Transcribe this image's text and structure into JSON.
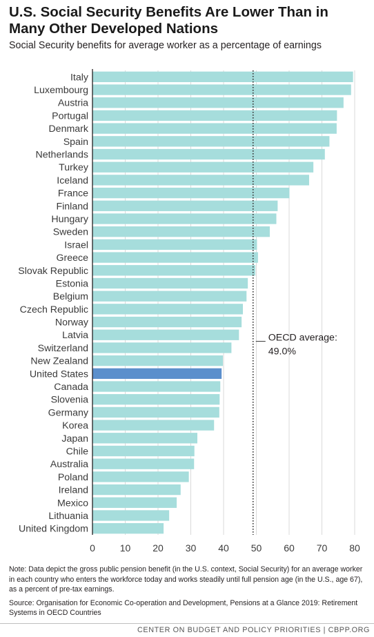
{
  "header": {
    "title": "U.S. Social Security Benefits Are Lower Than in Many Other Developed Nations",
    "subtitle": "Social Security benefits for average worker as a percentage of earnings"
  },
  "chart_data": {
    "type": "bar",
    "orientation": "horizontal",
    "categories": [
      "Italy",
      "Luxembourg",
      "Austria",
      "Portugal",
      "Denmark",
      "Spain",
      "Netherlands",
      "Turkey",
      "Iceland",
      "France",
      "Finland",
      "Hungary",
      "Sweden",
      "Israel",
      "Greece",
      "Slovak Republic",
      "Estonia",
      "Belgium",
      "Czech Republic",
      "Norway",
      "Latvia",
      "Switzerland",
      "New Zealand",
      "United States",
      "Canada",
      "Slovenia",
      "Germany",
      "Korea",
      "Japan",
      "Chile",
      "Australia",
      "Poland",
      "Ireland",
      "Mexico",
      "Lithuania",
      "United Kingdom"
    ],
    "values": [
      79.5,
      78.9,
      76.6,
      74.6,
      74.5,
      72.3,
      70.9,
      67.4,
      66.1,
      60.1,
      56.5,
      56.1,
      54.1,
      50.2,
      50.5,
      49.7,
      47.4,
      47.0,
      45.9,
      45.5,
      44.7,
      42.4,
      39.8,
      39.4,
      39.0,
      38.8,
      38.7,
      37.1,
      32.0,
      31.1,
      31.0,
      29.4,
      26.9,
      25.7,
      23.4,
      21.7
    ],
    "highlight": "United States",
    "bar_color": "#a6dddc",
    "highlight_color": "#5b8fcc",
    "reference_line": {
      "value": 49.0,
      "label": "OECD average:",
      "value_label": "49.0%"
    },
    "xlim": [
      0,
      80
    ],
    "xticks": [
      0,
      10,
      20,
      30,
      40,
      50,
      60,
      70,
      80
    ],
    "grid": true,
    "xlabel": "",
    "ylabel": ""
  },
  "notes": {
    "note": "Note: Data depict the gross public pension benefit (in the U.S. context, Social Security) for an average worker in each country who enters the workforce today and works steadily until full pension age (in the U.S., age 67), as a percent of pre-tax earnings.",
    "source": "Source: Organisation for Economic Co-operation and Development, Pensions at a Glance 2019: Retirement Systems in OECD Countries"
  },
  "footer": {
    "credit": "CENTER ON BUDGET AND POLICY PRIORITIES | CBPP.ORG"
  }
}
